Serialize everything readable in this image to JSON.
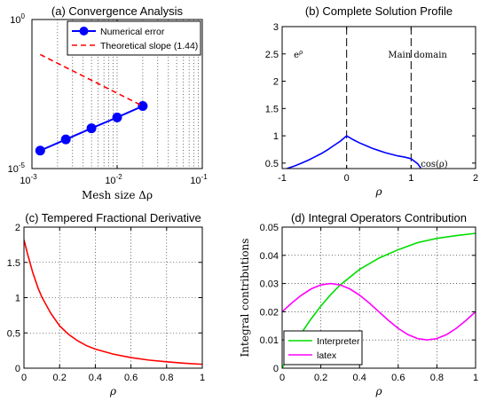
{
  "chart_data": [
    {
      "id": "a",
      "type": "line",
      "title": "(a) Convergence Analysis",
      "xlabel": "Mesh size Δρ",
      "ylabel": "",
      "xscale": "log",
      "yscale": "log",
      "xlim": [
        0.001,
        0.1
      ],
      "ylim": [
        1e-05,
        1
      ],
      "xticks": [
        0.001,
        0.01,
        0.1
      ],
      "xtick_labels": [
        [
          "10",
          "-3"
        ],
        [
          "10",
          "-2"
        ],
        [
          "10",
          "-1"
        ]
      ],
      "yticks": [
        1e-05,
        1
      ],
      "ytick_labels": [
        [
          "10",
          "-5"
        ],
        [
          "10",
          "0"
        ]
      ],
      "grid": true,
      "legend_position": "top-right",
      "series": [
        {
          "name": "Numerical error",
          "color": "#0000ff",
          "marker": "circle",
          "style": "solid",
          "x": [
            0.00125,
            0.0025,
            0.005,
            0.01,
            0.02
          ],
          "y": [
            4e-05,
            9.5e-05,
            0.000225,
            0.00052,
            0.00125
          ]
        },
        {
          "name": "Theoretical slope (1.44)",
          "color": "#ff0000",
          "marker": "none",
          "style": "dashed",
          "x": [
            0.00125,
            0.02
          ],
          "y": [
            0.067,
            0.00125
          ]
        }
      ]
    },
    {
      "id": "b",
      "type": "line",
      "title": "(b) Complete Solution Profile",
      "xlabel": "ρ",
      "ylabel": "",
      "xlim": [
        -1,
        2
      ],
      "ylim": [
        0.4,
        3
      ],
      "xticks": [
        -1,
        0,
        1,
        2
      ],
      "xtick_labels": [
        "-1",
        "0",
        "1",
        "2"
      ],
      "yticks": [
        0.5,
        1,
        1.5,
        2,
        2.5,
        3
      ],
      "ytick_labels": [
        "0.5",
        "1",
        "1.5",
        "2",
        "2.5",
        "3"
      ],
      "grid": false,
      "vlines": [
        0,
        1
      ],
      "annotations": [
        {
          "text": "e^ρ",
          "x": -0.75,
          "y": 2.5
        },
        {
          "text": "Main domain",
          "x": 1.1,
          "y": 2.5
        },
        {
          "text": "cos(ρ)",
          "x": 1.36,
          "y": 0.5
        }
      ],
      "series": [
        {
          "name": "",
          "color": "#0000ff",
          "x": [
            -1,
            -0.9,
            -0.8,
            -0.7,
            -0.6,
            -0.5,
            -0.4,
            -0.3,
            -0.2,
            -0.1,
            0,
            0.1,
            0.2,
            0.3,
            0.4,
            0.5,
            0.6,
            0.7,
            0.8,
            0.9,
            1,
            1.1,
            1.15
          ],
          "y": [
            0.37,
            0.41,
            0.45,
            0.5,
            0.55,
            0.61,
            0.67,
            0.74,
            0.82,
            0.9,
            1.0,
            0.93,
            0.87,
            0.82,
            0.77,
            0.73,
            0.69,
            0.66,
            0.63,
            0.61,
            0.58,
            0.49,
            0.41
          ]
        }
      ]
    },
    {
      "id": "c",
      "type": "line",
      "title": "(c) Tempered Fractional Derivative",
      "xlabel": "ρ",
      "ylabel": "",
      "xlim": [
        0,
        1
      ],
      "ylim": [
        0,
        2
      ],
      "xticks": [
        0,
        0.2,
        0.4,
        0.6,
        0.8,
        1
      ],
      "xtick_labels": [
        "0",
        "0.2",
        "0.4",
        "0.6",
        "0.8",
        "1"
      ],
      "yticks": [
        0,
        0.5,
        1,
        1.5,
        2
      ],
      "ytick_labels": [
        "0",
        "0.5",
        "1",
        "1.5",
        "2"
      ],
      "grid": true,
      "series": [
        {
          "name": "",
          "color": "#ff0000",
          "x": [
            0,
            0.02,
            0.05,
            0.08,
            0.1,
            0.15,
            0.2,
            0.25,
            0.3,
            0.35,
            0.4,
            0.5,
            0.6,
            0.7,
            0.8,
            0.9,
            1.0
          ],
          "y": [
            1.82,
            1.62,
            1.35,
            1.13,
            1.01,
            0.78,
            0.6,
            0.48,
            0.39,
            0.32,
            0.27,
            0.2,
            0.15,
            0.115,
            0.09,
            0.07,
            0.055
          ]
        }
      ]
    },
    {
      "id": "d",
      "type": "line",
      "title": "(d) Integral Operators Contribution",
      "xlabel": "ρ",
      "ylabel": "Integral contributions",
      "xlim": [
        0,
        1
      ],
      "ylim": [
        0,
        0.05
      ],
      "xticks": [
        0,
        0.2,
        0.4,
        0.6,
        0.8,
        1
      ],
      "xtick_labels": [
        "0",
        "0.2",
        "0.4",
        "0.6",
        "0.8",
        "1"
      ],
      "yticks": [
        0,
        0.01,
        0.02,
        0.03,
        0.04,
        0.05
      ],
      "ytick_labels": [
        "0",
        "0.01",
        "0.02",
        "0.03",
        "0.04",
        "0.05"
      ],
      "grid": true,
      "legend_position": "bottom-left",
      "series": [
        {
          "name": "Interpreter",
          "color": "#00dd00",
          "x": [
            0,
            0.05,
            0.1,
            0.15,
            0.2,
            0.25,
            0.3,
            0.4,
            0.5,
            0.6,
            0.7,
            0.8,
            0.9,
            1.0
          ],
          "y": [
            0,
            0.007,
            0.0125,
            0.0175,
            0.022,
            0.026,
            0.0295,
            0.035,
            0.039,
            0.042,
            0.0445,
            0.046,
            0.047,
            0.0478
          ]
        },
        {
          "name": "latex",
          "color": "#ff00ff",
          "x": [
            0,
            0.05,
            0.1,
            0.15,
            0.2,
            0.25,
            0.3,
            0.35,
            0.4,
            0.45,
            0.5,
            0.55,
            0.6,
            0.65,
            0.7,
            0.75,
            0.8,
            0.85,
            0.9,
            0.95,
            1.0
          ],
          "y": [
            0.02,
            0.0231,
            0.0259,
            0.0281,
            0.0295,
            0.03,
            0.0295,
            0.0281,
            0.0259,
            0.0231,
            0.02,
            0.0169,
            0.0141,
            0.0119,
            0.0105,
            0.01,
            0.0105,
            0.0119,
            0.0141,
            0.0169,
            0.02
          ]
        }
      ]
    }
  ]
}
